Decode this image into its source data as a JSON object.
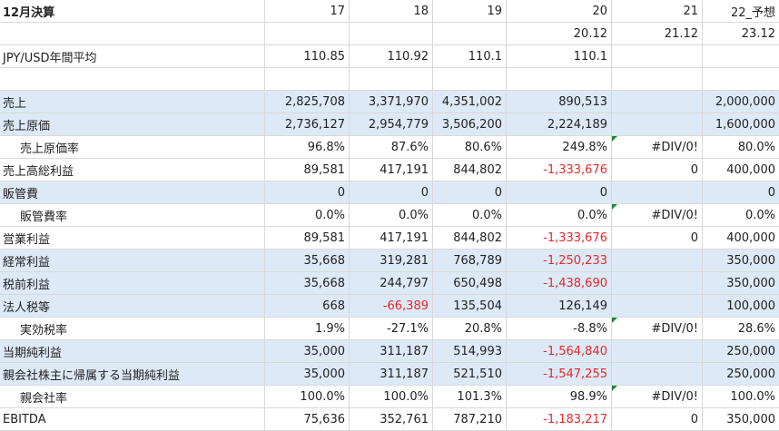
{
  "sheet": {
    "rows": [
      {
        "cells": [
          {
            "v": "12月決算",
            "bold": true
          },
          {
            "v": "17"
          },
          {
            "v": "18"
          },
          {
            "v": "19"
          },
          {
            "v": "20"
          },
          {
            "v": "21"
          },
          {
            "v": "22_予想"
          }
        ]
      },
      {
        "cells": [
          {
            "v": ""
          },
          {
            "v": ""
          },
          {
            "v": ""
          },
          {
            "v": ""
          },
          {
            "v": "20.12"
          },
          {
            "v": "21.12"
          },
          {
            "v": "23.12"
          }
        ]
      },
      {
        "cells": [
          {
            "v": "JPY/USD年間平均"
          },
          {
            "v": "110.85"
          },
          {
            "v": "110.92"
          },
          {
            "v": "110.1"
          },
          {
            "v": "110.1"
          },
          {
            "v": ""
          },
          {
            "v": ""
          }
        ]
      },
      {
        "cells": [
          {
            "v": ""
          },
          {
            "v": ""
          },
          {
            "v": ""
          },
          {
            "v": ""
          },
          {
            "v": ""
          },
          {
            "v": ""
          },
          {
            "v": ""
          }
        ]
      },
      {
        "cells": [
          {
            "v": "売上",
            "blue": true
          },
          {
            "v": "2,825,708",
            "blue": true
          },
          {
            "v": "3,371,970",
            "blue": true
          },
          {
            "v": "4,351,002",
            "blue": true
          },
          {
            "v": "890,513",
            "blue": true
          },
          {
            "v": "",
            "blue": true
          },
          {
            "v": "2,000,000",
            "blue": true
          }
        ]
      },
      {
        "cells": [
          {
            "v": "売上原価",
            "blue": true
          },
          {
            "v": "2,736,127",
            "blue": true
          },
          {
            "v": "2,954,779",
            "blue": true
          },
          {
            "v": "3,506,200",
            "blue": true
          },
          {
            "v": "2,224,189",
            "blue": true
          },
          {
            "v": "",
            "blue": true
          },
          {
            "v": "1,600,000",
            "blue": true
          }
        ]
      },
      {
        "cells": [
          {
            "v": "売上原価率",
            "indent": true
          },
          {
            "v": "96.8%"
          },
          {
            "v": "87.6%"
          },
          {
            "v": "80.6%"
          },
          {
            "v": "249.8%"
          },
          {
            "v": "#DIV/0!",
            "tri": true
          },
          {
            "v": "80.0%"
          }
        ]
      },
      {
        "cells": [
          {
            "v": "売上高総利益"
          },
          {
            "v": "89,581"
          },
          {
            "v": "417,191"
          },
          {
            "v": "844,802"
          },
          {
            "v": "-1,333,676",
            "neg": true
          },
          {
            "v": "0"
          },
          {
            "v": "400,000"
          }
        ]
      },
      {
        "cells": [
          {
            "v": "販管費",
            "blue": true
          },
          {
            "v": "0",
            "blue": true
          },
          {
            "v": "0",
            "blue": true
          },
          {
            "v": "0",
            "blue": true
          },
          {
            "v": "0",
            "blue": true
          },
          {
            "v": "",
            "blue": true
          },
          {
            "v": "0",
            "blue": true
          }
        ]
      },
      {
        "cells": [
          {
            "v": "販管費率",
            "indent": true
          },
          {
            "v": "0.0%"
          },
          {
            "v": "0.0%"
          },
          {
            "v": "0.0%"
          },
          {
            "v": "0.0%"
          },
          {
            "v": "#DIV/0!",
            "tri": true
          },
          {
            "v": "0.0%"
          }
        ]
      },
      {
        "cells": [
          {
            "v": "営業利益"
          },
          {
            "v": "89,581"
          },
          {
            "v": "417,191"
          },
          {
            "v": "844,802"
          },
          {
            "v": "-1,333,676",
            "neg": true
          },
          {
            "v": "0"
          },
          {
            "v": "400,000"
          }
        ]
      },
      {
        "cells": [
          {
            "v": "経常利益",
            "blue": true
          },
          {
            "v": "35,668",
            "blue": true
          },
          {
            "v": "319,281",
            "blue": true
          },
          {
            "v": "768,789",
            "blue": true
          },
          {
            "v": "-1,250,233",
            "blue": true,
            "neg": true
          },
          {
            "v": "",
            "blue": true
          },
          {
            "v": "350,000",
            "blue": true
          }
        ]
      },
      {
        "cells": [
          {
            "v": "税前利益",
            "blue": true
          },
          {
            "v": "35,668",
            "blue": true
          },
          {
            "v": "244,797",
            "blue": true
          },
          {
            "v": "650,498",
            "blue": true
          },
          {
            "v": "-1,438,690",
            "blue": true,
            "neg": true
          },
          {
            "v": "",
            "blue": true
          },
          {
            "v": "350,000",
            "blue": true
          }
        ]
      },
      {
        "cells": [
          {
            "v": "法人税等",
            "blue": true
          },
          {
            "v": "668",
            "blue": true
          },
          {
            "v": "-66,389",
            "blue": true,
            "neg": true
          },
          {
            "v": "135,504",
            "blue": true
          },
          {
            "v": "126,149",
            "blue": true
          },
          {
            "v": "",
            "blue": true
          },
          {
            "v": "100,000",
            "blue": true
          }
        ]
      },
      {
        "cells": [
          {
            "v": "実効税率",
            "indent": true
          },
          {
            "v": "1.9%"
          },
          {
            "v": "-27.1%"
          },
          {
            "v": "20.8%"
          },
          {
            "v": "-8.8%"
          },
          {
            "v": "#DIV/0!",
            "tri": true
          },
          {
            "v": "28.6%"
          }
        ]
      },
      {
        "cells": [
          {
            "v": "当期純利益",
            "blue": true
          },
          {
            "v": "35,000",
            "blue": true
          },
          {
            "v": "311,187",
            "blue": true
          },
          {
            "v": "514,993",
            "blue": true
          },
          {
            "v": "-1,564,840",
            "blue": true,
            "neg": true
          },
          {
            "v": "",
            "blue": true
          },
          {
            "v": "250,000",
            "blue": true
          }
        ]
      },
      {
        "cells": [
          {
            "v": "親会社株主に帰属する当期純利益",
            "blue": true
          },
          {
            "v": "35,000",
            "blue": true
          },
          {
            "v": "311,187",
            "blue": true
          },
          {
            "v": "521,510",
            "blue": true
          },
          {
            "v": "-1,547,255",
            "blue": true,
            "neg": true
          },
          {
            "v": "",
            "blue": true
          },
          {
            "v": "250,000",
            "blue": true
          }
        ]
      },
      {
        "cells": [
          {
            "v": "親会社率",
            "indent": true
          },
          {
            "v": "100.0%"
          },
          {
            "v": "100.0%"
          },
          {
            "v": "101.3%"
          },
          {
            "v": "98.9%"
          },
          {
            "v": "#DIV/0!",
            "tri": true
          },
          {
            "v": "100.0%"
          }
        ]
      },
      {
        "cells": [
          {
            "v": "EBITDA"
          },
          {
            "v": "75,636"
          },
          {
            "v": "352,761"
          },
          {
            "v": "787,210"
          },
          {
            "v": "-1,183,217",
            "neg": true
          },
          {
            "v": "0"
          },
          {
            "v": "350,000"
          }
        ]
      }
    ]
  }
}
